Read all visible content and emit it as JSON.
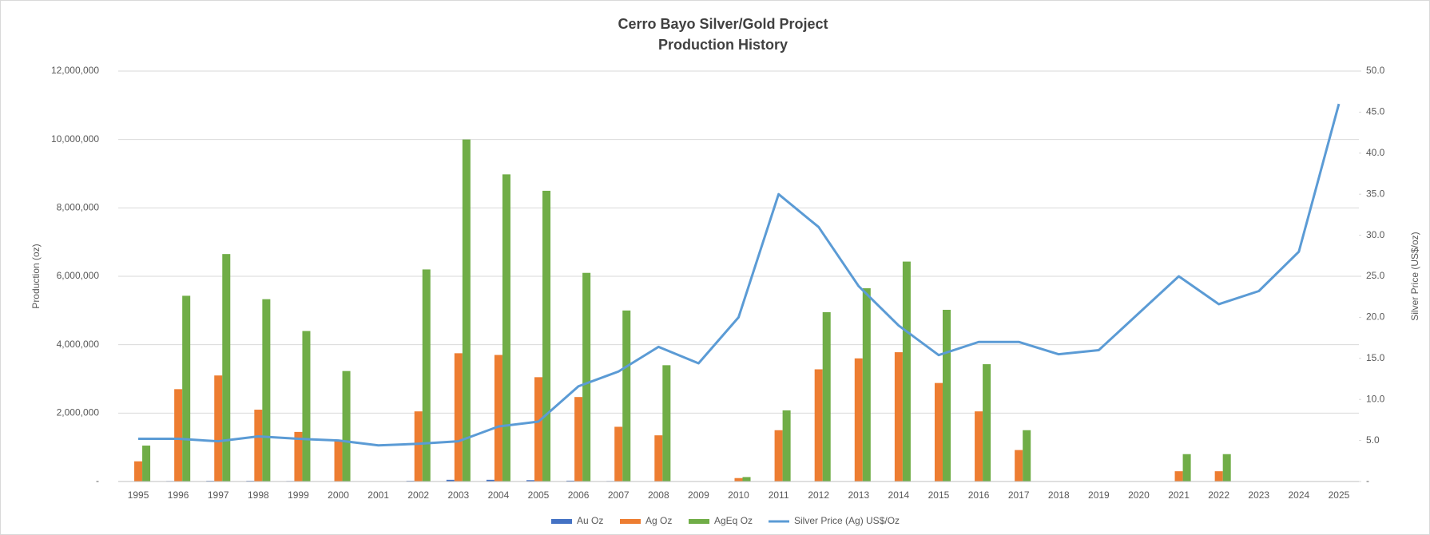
{
  "chart_data": {
    "type": "bar",
    "title": [
      "Cerro Bayo Silver/Gold Project",
      "Production History"
    ],
    "y_label": "Production (oz)",
    "y2_label": "Silver Price (US$/oz)",
    "categories": [
      "1995",
      "1996",
      "1997",
      "1998",
      "1999",
      "2000",
      "2001",
      "2002",
      "2003",
      "2004",
      "2005",
      "2006",
      "2007",
      "2008",
      "2009",
      "2010",
      "2011",
      "2012",
      "2013",
      "2014",
      "2015",
      "2016",
      "2017",
      "2018",
      "2019",
      "2020",
      "2021",
      "2022",
      "2023",
      "2024",
      "2025"
    ],
    "series": [
      {
        "name": "Au Oz",
        "type": "bar",
        "color": "#4472c4",
        "values": [
          5000,
          15000,
          20000,
          20000,
          15000,
          10000,
          0,
          20000,
          50000,
          50000,
          40000,
          25000,
          15000,
          10000,
          0,
          0,
          0,
          0,
          0,
          10000,
          0,
          0,
          0,
          0,
          0,
          0,
          0,
          0,
          0,
          0,
          0
        ]
      },
      {
        "name": "Ag Oz",
        "type": "bar",
        "color": "#ed7d31",
        "values": [
          590000,
          2700000,
          3100000,
          2100000,
          1450000,
          1200000,
          0,
          2050000,
          3750000,
          3700000,
          3050000,
          2470000,
          1600000,
          1350000,
          0,
          100000,
          1500000,
          3280000,
          3600000,
          3780000,
          2880000,
          2050000,
          920000,
          0,
          0,
          0,
          300000,
          300000,
          0,
          0,
          0
        ]
      },
      {
        "name": "AgEq Oz",
        "type": "bar",
        "color": "#70ad47",
        "values": [
          1050000,
          5430000,
          6650000,
          5330000,
          4400000,
          3230000,
          0,
          6200000,
          10000000,
          8980000,
          8500000,
          6100000,
          5000000,
          3400000,
          0,
          130000,
          2080000,
          4950000,
          5650000,
          6430000,
          5020000,
          3430000,
          1500000,
          0,
          0,
          0,
          800000,
          800000,
          0,
          0,
          0
        ]
      },
      {
        "name": "Silver Price (Ag) US$/Oz",
        "type": "line",
        "axis": "y2",
        "color": "#5b9bd5",
        "values": [
          5.2,
          5.2,
          4.9,
          5.5,
          5.2,
          5.0,
          4.4,
          4.6,
          4.9,
          6.7,
          7.3,
          11.6,
          13.4,
          16.4,
          14.4,
          20.0,
          35.0,
          31.0,
          23.8,
          19.0,
          15.4,
          17.0,
          17.0,
          15.5,
          16.0,
          20.5,
          25.0,
          21.6,
          23.2,
          28.0,
          46.0
        ]
      }
    ],
    "ylim": [
      0,
      12000000
    ],
    "yticks": [
      {
        "value": 0,
        "label": "-"
      },
      {
        "value": 2000000,
        "label": "2,000,000"
      },
      {
        "value": 4000000,
        "label": "4,000,000"
      },
      {
        "value": 6000000,
        "label": "6,000,000"
      },
      {
        "value": 8000000,
        "label": "8,000,000"
      },
      {
        "value": 10000000,
        "label": "10,000,000"
      },
      {
        "value": 12000000,
        "label": "12,000,000"
      }
    ],
    "y2lim": [
      0,
      50
    ],
    "y2ticks": [
      {
        "value": 0,
        "label": "-"
      },
      {
        "value": 5,
        "label": "5.0"
      },
      {
        "value": 10,
        "label": "10.0"
      },
      {
        "value": 15,
        "label": "15.0"
      },
      {
        "value": 20,
        "label": "20.0"
      },
      {
        "value": 25,
        "label": "25.0"
      },
      {
        "value": 30,
        "label": "30.0"
      },
      {
        "value": 35,
        "label": "35.0"
      },
      {
        "value": 40,
        "label": "40.0"
      },
      {
        "value": 45,
        "label": "45.0"
      },
      {
        "value": 50,
        "label": "50.0"
      }
    ],
    "grid": true,
    "legend": "bottom"
  }
}
